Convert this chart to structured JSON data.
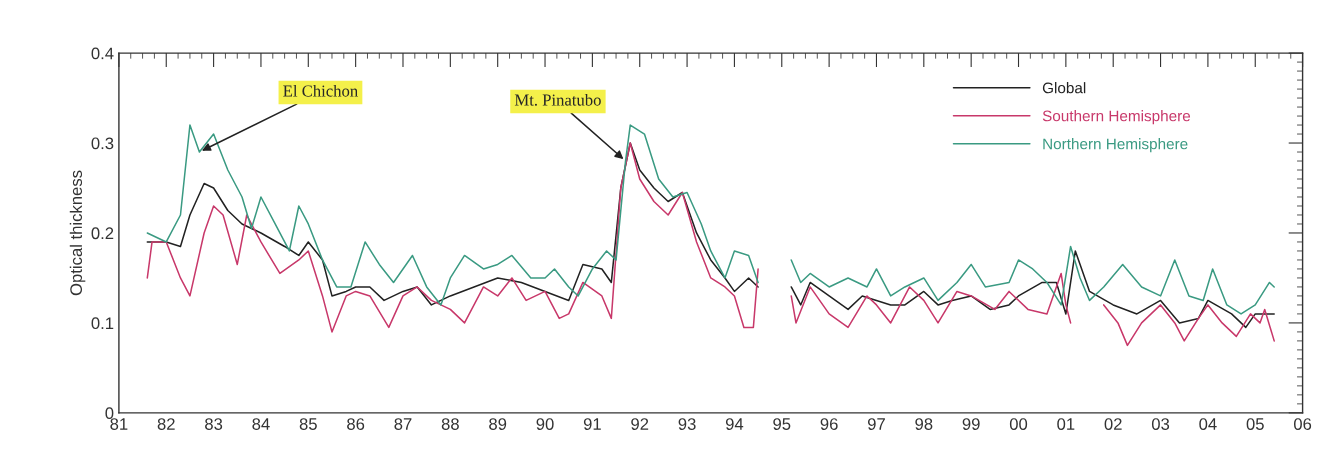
{
  "chart_data": {
    "type": "line",
    "ylabel": "Optical thickness",
    "xlim": [
      1981,
      2006
    ],
    "xticks": [
      {
        "value": 1981,
        "label": "81"
      },
      {
        "value": 1982,
        "label": "82"
      },
      {
        "value": 1983,
        "label": "83"
      },
      {
        "value": 1984,
        "label": "84"
      },
      {
        "value": 1985,
        "label": "85"
      },
      {
        "value": 1986,
        "label": "86"
      },
      {
        "value": 1987,
        "label": "87"
      },
      {
        "value": 1988,
        "label": "88"
      },
      {
        "value": 1989,
        "label": "89"
      },
      {
        "value": 1990,
        "label": "90"
      },
      {
        "value": 1991,
        "label": "91"
      },
      {
        "value": 1992,
        "label": "92"
      },
      {
        "value": 1993,
        "label": "93"
      },
      {
        "value": 1994,
        "label": "94"
      },
      {
        "value": 1995,
        "label": "95"
      },
      {
        "value": 1996,
        "label": "96"
      },
      {
        "value": 1997,
        "label": "97"
      },
      {
        "value": 1998,
        "label": "98"
      },
      {
        "value": 1999,
        "label": "99"
      },
      {
        "value": 2000,
        "label": "00"
      },
      {
        "value": 2001,
        "label": "01"
      },
      {
        "value": 2002,
        "label": "02"
      },
      {
        "value": 2003,
        "label": "03"
      },
      {
        "value": 2004,
        "label": "04"
      },
      {
        "value": 2005,
        "label": "05"
      },
      {
        "value": 2006,
        "label": "06"
      }
    ],
    "ylim": [
      0,
      0.4
    ],
    "yticks": [
      0,
      0.1,
      0.2,
      0.3,
      0.4
    ],
    "grid": false,
    "legend": "top right",
    "marker": "none",
    "line_style": "solid",
    "annotations": [
      {
        "text": "El Chichon",
        "x": 1982.7,
        "y": 0.29
      },
      {
        "text": "Mt. Pinatubo",
        "x": 1991.7,
        "y": 0.28
      }
    ],
    "series": [
      {
        "name": "Global",
        "color": "#222222",
        "x": [
          1981.6,
          1982.0,
          1982.3,
          1982.5,
          1982.8,
          1983.0,
          1983.3,
          1983.6,
          1984.0,
          1984.5,
          1984.8,
          1985.0,
          1985.3,
          1985.5,
          1985.8,
          1986.0,
          1986.3,
          1986.6,
          1987.0,
          1987.3,
          1987.6,
          1988.0,
          1988.5,
          1989.0,
          1989.5,
          1990.0,
          1990.5,
          1990.8,
          1991.2,
          1991.4,
          1991.6,
          1991.8,
          1992.0,
          1992.3,
          1992.6,
          1992.9,
          1993.2,
          1993.5,
          1993.8,
          1994.0,
          1994.3,
          1994.5,
          1994.9,
          1995.2,
          1995.4,
          1995.6,
          1996.0,
          1996.4,
          1996.7,
          1997.0,
          1997.3,
          1997.6,
          1998.0,
          1998.3,
          1998.6,
          1999.0,
          1999.4,
          1999.8,
          2000.0,
          2000.5,
          2000.8,
          2001.0,
          2001.2,
          2001.5,
          2002.0,
          2002.5,
          2003.0,
          2003.4,
          2003.8,
          2004.0,
          2004.5,
          2004.8,
          2005.0,
          2005.4
        ],
        "values": [
          0.19,
          0.19,
          0.185,
          0.22,
          0.255,
          0.25,
          0.225,
          0.21,
          0.2,
          0.185,
          0.175,
          0.19,
          0.17,
          0.13,
          0.135,
          0.14,
          0.14,
          0.125,
          0.135,
          0.14,
          0.12,
          0.13,
          0.14,
          0.15,
          0.145,
          0.135,
          0.125,
          0.165,
          0.16,
          0.145,
          0.25,
          0.3,
          0.27,
          0.25,
          0.235,
          0.245,
          0.2,
          0.17,
          0.15,
          0.135,
          0.15,
          0.14,
          null,
          0.14,
          0.12,
          0.145,
          0.13,
          0.115,
          0.13,
          0.125,
          0.12,
          0.12,
          0.135,
          0.12,
          0.125,
          0.13,
          0.115,
          0.12,
          0.13,
          0.145,
          0.145,
          0.11,
          0.18,
          0.135,
          0.12,
          0.11,
          0.125,
          0.1,
          0.105,
          0.125,
          0.11,
          0.095,
          0.11,
          0.11
        ]
      },
      {
        "name": "Southern Hemisphere",
        "color": "#c8386a",
        "x": [
          1981.6,
          1981.7,
          1982.0,
          1982.3,
          1982.5,
          1982.8,
          1983.0,
          1983.2,
          1983.5,
          1983.7,
          1984.0,
          1984.4,
          1984.8,
          1985.0,
          1985.3,
          1985.5,
          1985.8,
          1986.0,
          1986.3,
          1986.7,
          1987.0,
          1987.3,
          1987.6,
          1988.0,
          1988.3,
          1988.7,
          1989.0,
          1989.3,
          1989.6,
          1990.0,
          1990.3,
          1990.5,
          1990.8,
          1991.2,
          1991.4,
          1991.6,
          1991.8,
          1992.0,
          1992.3,
          1992.6,
          1992.9,
          1993.2,
          1993.5,
          1993.8,
          1994.0,
          1994.2,
          1994.4,
          1994.5,
          1994.9,
          1995.2,
          1995.3,
          1995.6,
          1996.0,
          1996.4,
          1996.8,
          1997.0,
          1997.3,
          1997.7,
          1998.0,
          1998.3,
          1998.7,
          1999.0,
          1999.5,
          1999.8,
          2000.2,
          2000.6,
          2000.9,
          2001.0,
          2001.1,
          2001.5,
          2001.8,
          2002.1,
          2002.3,
          2002.6,
          2003.0,
          2003.3,
          2003.5,
          2003.8,
          2004.0,
          2004.3,
          2004.6,
          2004.9,
          2005.1,
          2005.2,
          2005.4
        ],
        "values": [
          0.15,
          0.19,
          0.19,
          0.15,
          0.13,
          0.2,
          0.23,
          0.22,
          0.165,
          0.22,
          0.19,
          0.155,
          0.17,
          0.18,
          0.13,
          0.09,
          0.13,
          0.135,
          0.13,
          0.095,
          0.13,
          0.14,
          0.125,
          0.115,
          0.1,
          0.14,
          0.13,
          0.15,
          0.125,
          0.135,
          0.105,
          0.11,
          0.145,
          0.13,
          0.105,
          0.25,
          0.3,
          0.26,
          0.235,
          0.22,
          0.245,
          0.19,
          0.15,
          0.14,
          0.13,
          0.095,
          0.095,
          0.16,
          null,
          0.13,
          0.1,
          0.14,
          0.11,
          0.095,
          0.13,
          0.12,
          0.1,
          0.14,
          0.125,
          0.1,
          0.135,
          0.13,
          0.115,
          0.135,
          0.115,
          0.11,
          0.155,
          0.12,
          0.1,
          null,
          0.12,
          0.1,
          0.075,
          0.1,
          0.12,
          0.1,
          0.08,
          0.105,
          0.12,
          0.1,
          0.085,
          0.11,
          0.1,
          0.115,
          0.08
        ]
      },
      {
        "name": "Northern Hemisphere",
        "color": "#3a9a82",
        "x": [
          1981.6,
          1982.0,
          1982.3,
          1982.5,
          1982.7,
          1983.0,
          1983.3,
          1983.6,
          1983.8,
          1984.0,
          1984.3,
          1984.6,
          1984.8,
          1985.0,
          1985.3,
          1985.6,
          1985.9,
          1986.2,
          1986.5,
          1986.8,
          1987.0,
          1987.2,
          1987.5,
          1987.8,
          1988.0,
          1988.3,
          1988.7,
          1989.0,
          1989.3,
          1989.7,
          1990.0,
          1990.2,
          1990.5,
          1990.7,
          1991.0,
          1991.3,
          1991.5,
          1991.7,
          1991.8,
          1992.1,
          1992.4,
          1992.7,
          1993.0,
          1993.3,
          1993.5,
          1993.8,
          1994.0,
          1994.3,
          1994.5,
          1994.9,
          1995.2,
          1995.4,
          1995.6,
          1996.0,
          1996.4,
          1996.8,
          1997.0,
          1997.3,
          1997.6,
          1998.0,
          1998.3,
          1998.7,
          1999.0,
          1999.3,
          1999.8,
          2000.0,
          2000.3,
          2000.6,
          2000.9,
          2001.1,
          2001.3,
          2001.5,
          2001.8,
          2002.2,
          2002.6,
          2003.0,
          2003.3,
          2003.6,
          2003.9,
          2004.1,
          2004.4,
          2004.7,
          2005.0,
          2005.3,
          2005.4
        ],
        "values": [
          0.2,
          0.19,
          0.22,
          0.32,
          0.29,
          0.31,
          0.27,
          0.24,
          0.205,
          0.24,
          0.21,
          0.18,
          0.23,
          0.21,
          0.17,
          0.14,
          0.14,
          0.19,
          0.165,
          0.145,
          0.16,
          0.175,
          0.14,
          0.12,
          0.15,
          0.175,
          0.16,
          0.165,
          0.175,
          0.15,
          0.15,
          0.16,
          0.14,
          0.13,
          0.16,
          0.18,
          0.17,
          0.28,
          0.32,
          0.31,
          0.26,
          0.24,
          0.245,
          0.21,
          0.18,
          0.15,
          0.18,
          0.175,
          0.145,
          null,
          0.17,
          0.145,
          0.155,
          0.14,
          0.15,
          0.14,
          0.16,
          0.13,
          0.14,
          0.15,
          0.125,
          0.145,
          0.165,
          0.14,
          0.145,
          0.17,
          0.16,
          0.145,
          0.12,
          0.185,
          0.15,
          0.125,
          0.14,
          0.165,
          0.14,
          0.13,
          0.17,
          0.13,
          0.125,
          0.16,
          0.12,
          0.11,
          0.12,
          0.145,
          0.14
        ]
      }
    ]
  }
}
